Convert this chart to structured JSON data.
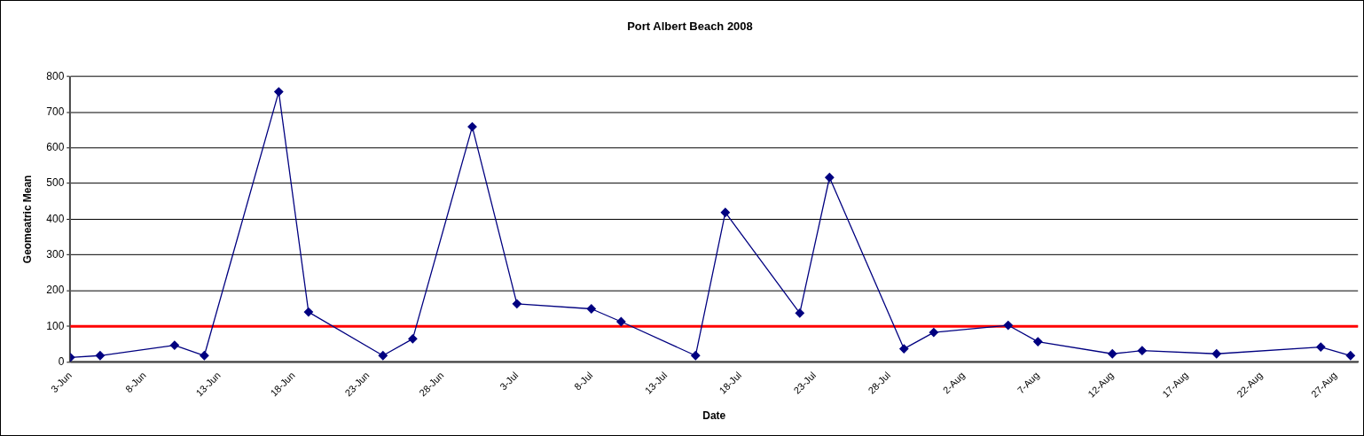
{
  "chart_data": {
    "type": "line",
    "title": "Port Albert Beach 2008",
    "xlabel": "Date",
    "ylabel": "Geomeatric Mean",
    "x": [
      "2008-06-03",
      "2008-06-05",
      "2008-06-10",
      "2008-06-12",
      "2008-06-17",
      "2008-06-19",
      "2008-06-24",
      "2008-06-26",
      "2008-06-30",
      "2008-07-03",
      "2008-07-08",
      "2008-07-10",
      "2008-07-15",
      "2008-07-17",
      "2008-07-22",
      "2008-07-24",
      "2008-07-29",
      "2008-07-31",
      "2008-08-05",
      "2008-08-07",
      "2008-08-12",
      "2008-08-14",
      "2008-08-19",
      "2008-08-26",
      "2008-08-28"
    ],
    "series": [
      {
        "color": "#000080",
        "values": [
          13,
          18,
          47,
          18,
          757,
          140,
          18,
          65,
          659,
          163,
          149,
          113,
          18,
          419,
          137,
          517,
          37,
          83,
          103,
          57,
          23,
          32,
          23,
          42,
          18
        ]
      }
    ],
    "xlim": [
      "2008-06-03",
      "2008-08-28T12:00"
    ],
    "xticks": [
      {
        "value": "2008-06-03",
        "label": "3-Jun"
      },
      {
        "value": "2008-06-08",
        "label": "8-Jun"
      },
      {
        "value": "2008-06-13",
        "label": "13-Jun"
      },
      {
        "value": "2008-06-18",
        "label": "18-Jun"
      },
      {
        "value": "2008-06-23",
        "label": "23-Jun"
      },
      {
        "value": "2008-06-28",
        "label": "28-Jun"
      },
      {
        "value": "2008-07-03",
        "label": "3-Jul"
      },
      {
        "value": "2008-07-08",
        "label": "8-Jul"
      },
      {
        "value": "2008-07-13",
        "label": "13-Jul"
      },
      {
        "value": "2008-07-18",
        "label": "18-Jul"
      },
      {
        "value": "2008-07-23",
        "label": "23-Jul"
      },
      {
        "value": "2008-07-28",
        "label": "28-Jul"
      },
      {
        "value": "2008-08-02",
        "label": "2-Aug"
      },
      {
        "value": "2008-08-07",
        "label": "7-Aug"
      },
      {
        "value": "2008-08-12",
        "label": "12-Aug"
      },
      {
        "value": "2008-08-17",
        "label": "17-Aug"
      },
      {
        "value": "2008-08-22",
        "label": "22-Aug"
      },
      {
        "value": "2008-08-27",
        "label": "27-Aug"
      }
    ],
    "ylim": [
      0,
      800
    ],
    "yticks": [
      0,
      100,
      200,
      300,
      400,
      500,
      600,
      700,
      800
    ],
    "ref_lines": [
      {
        "axis": "y",
        "value": 100,
        "color": "#ff0000"
      }
    ],
    "grid": "y",
    "legend": false,
    "marker": "diamond",
    "line_style": "solid"
  }
}
